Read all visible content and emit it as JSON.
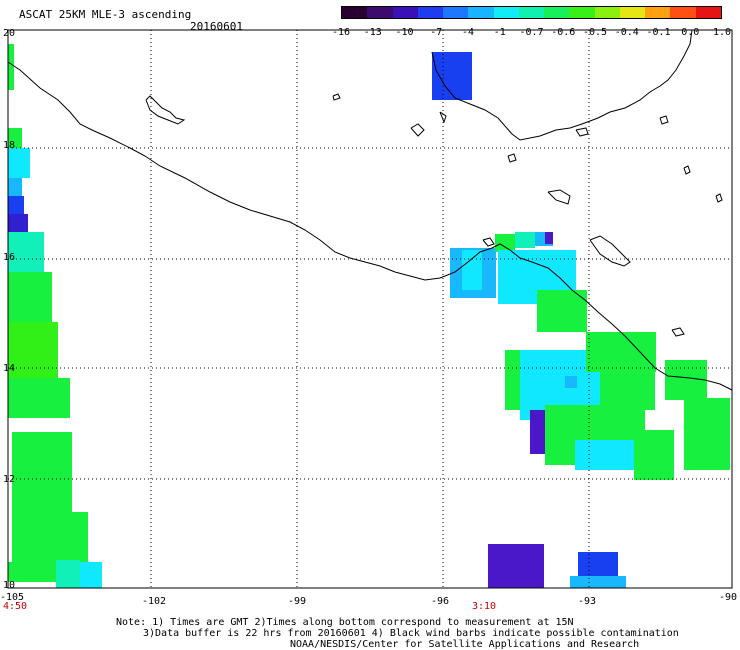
{
  "header": {
    "title": "ASCAT 25KM MLE-3 ascending",
    "date": "20160601"
  },
  "colorbar": {
    "labels": [
      "-16",
      "-13",
      "-10",
      "-7",
      "-4",
      "-1",
      "-0.7",
      "-0.6",
      "-0.5",
      "-0.4",
      "-0.1",
      "0.0",
      "1.0"
    ],
    "colors": [
      "#2a0033",
      "#3d0a6e",
      "#3a10b8",
      "#1f3cf0",
      "#1e78ff",
      "#18b4ff",
      "#12ecf5",
      "#10f0b0",
      "#18f05a",
      "#38f018",
      "#8af010",
      "#e6e614",
      "#ffa014",
      "#ff5014",
      "#e61414"
    ]
  },
  "map": {
    "lat_labels": [
      "20",
      "18",
      "16",
      "14",
      "12",
      "10"
    ],
    "lon_labels": [
      "-105",
      "-102",
      "-99",
      "-96",
      "-93",
      "-90"
    ],
    "time_labels": {
      "left": "4:50",
      "center": "3:10"
    },
    "colors": {
      "blue": "#1840f0",
      "deep_blue": "#3020d0",
      "purple": "#4a18c8",
      "cyan": "#10e8ff",
      "sky": "#18b8ff",
      "teal": "#10f0b8",
      "green": "#18f040",
      "lime": "#30f018",
      "coast": "#000000",
      "grid": "#000000"
    }
  },
  "footer": {
    "line1": "Note: 1) Times are GMT 2)Times along bottom correspond to measurement at 15N",
    "line2": "3)Data buffer is 22 hrs from 20160601 4) Black wind barbs indicate possible contamination",
    "line3": "NOAA/NESDIS/Center for Satellite Applications and Research"
  }
}
